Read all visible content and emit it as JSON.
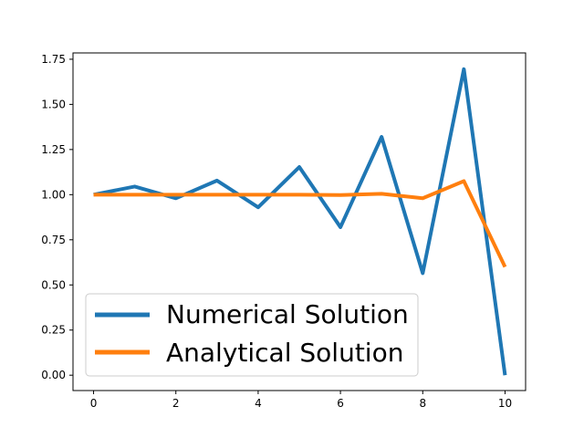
{
  "chart_data": {
    "type": "line",
    "title": "",
    "xlabel": "",
    "ylabel": "",
    "xlim": [
      -0.5,
      10.5
    ],
    "ylim": [
      -0.085,
      1.785
    ],
    "grid": false,
    "legend_position": "lower-left",
    "x": [
      0,
      1,
      2,
      3,
      4,
      5,
      6,
      7,
      8,
      9,
      10
    ],
    "x_ticks": [
      0,
      2,
      4,
      6,
      8,
      10
    ],
    "x_tick_labels": [
      "0",
      "2",
      "4",
      "6",
      "8",
      "10"
    ],
    "y_ticks": [
      0,
      0.25,
      0.5,
      0.75,
      1.0,
      1.25,
      1.5,
      1.75
    ],
    "y_tick_labels": [
      "0.00",
      "0.25",
      "0.50",
      "0.75",
      "1.00",
      "1.25",
      "1.50",
      "1.75"
    ],
    "series": [
      {
        "name": "Numerical Solution",
        "color": "#1f77b4",
        "values": [
          1.0,
          1.045,
          0.98,
          1.078,
          0.93,
          1.153,
          0.82,
          1.32,
          0.565,
          1.695,
          0.0
        ]
      },
      {
        "name": "Analytical Solution",
        "color": "#ff7f0e",
        "values": [
          1.0,
          1.0,
          1.0,
          1.0,
          1.0,
          1.0,
          0.998,
          1.005,
          0.98,
          1.075,
          0.6
        ]
      }
    ]
  }
}
